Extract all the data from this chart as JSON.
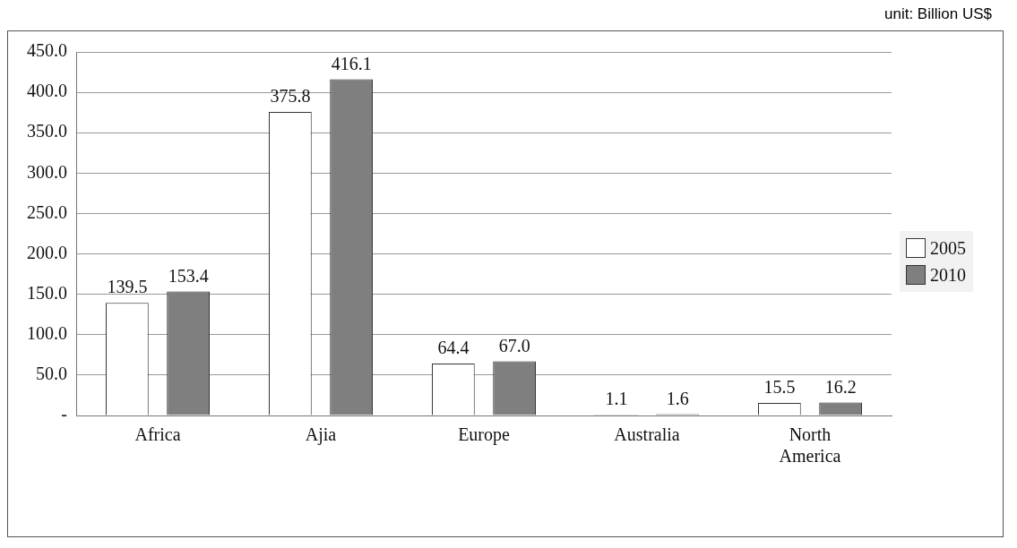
{
  "chart_data": {
    "type": "bar",
    "annotations": [
      "unit: Billion US$"
    ],
    "categories": [
      "Africa",
      "Ajia",
      "Europe",
      "Australia",
      "North America"
    ],
    "series": [
      {
        "name": "2005",
        "color": "#ffffff",
        "values": [
          139.5,
          375.8,
          64.4,
          1.1,
          15.5
        ],
        "value_labels": [
          "139.5",
          "375.8",
          "64.4",
          "1.1",
          "15.5"
        ]
      },
      {
        "name": "2010",
        "color": "#7f7f7f",
        "values": [
          153.4,
          416.1,
          67.0,
          1.6,
          16.2
        ],
        "value_labels": [
          "153.4",
          "416.1",
          "67.0",
          "1.6",
          "16.2"
        ]
      }
    ],
    "ylim": [
      0,
      450
    ],
    "yticks": [
      {
        "value": 0,
        "label": "-"
      },
      {
        "value": 50,
        "label": "50.0"
      },
      {
        "value": 100,
        "label": "100.0"
      },
      {
        "value": 150,
        "label": "150.0"
      },
      {
        "value": 200,
        "label": "200.0"
      },
      {
        "value": 250,
        "label": "250.0"
      },
      {
        "value": 300,
        "label": "300.0"
      },
      {
        "value": 350,
        "label": "350.0"
      },
      {
        "value": 400,
        "label": "400.0"
      },
      {
        "value": 450,
        "label": "450.0"
      }
    ],
    "grid": "y",
    "legend": "right"
  }
}
